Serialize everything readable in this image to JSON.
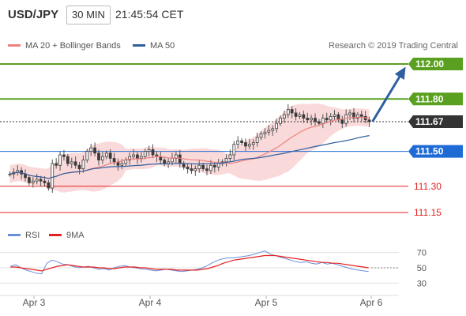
{
  "header": {
    "symbol": "USD/JPY",
    "timeframe": "30 MIN",
    "time": "21:45:54 CET"
  },
  "legend": {
    "bollinger_label": "MA 20 + Bollinger Bands",
    "ma50_label": "MA 50",
    "credit": "Research © 2019 Trading Central",
    "colors": {
      "bollinger": "#f08080",
      "ma50": "#2f5f9e"
    }
  },
  "rsi_legend": {
    "rsi_label": "RSI",
    "ma9_label": "9MA",
    "colors": {
      "rsi": "#6a8fd8",
      "ma9": "#e62020"
    }
  },
  "chart_data": [
    {
      "type": "line",
      "series": [
        {
          "name": "USD/JPY",
          "values": [
            111.37,
            111.38,
            111.39,
            111.37,
            111.35,
            111.32,
            111.33,
            111.34,
            111.33,
            111.32,
            111.29,
            111.43,
            111.42,
            111.48,
            111.47,
            111.43,
            111.44,
            111.42,
            111.4,
            111.45,
            111.5,
            111.52,
            111.49,
            111.45,
            111.47,
            111.49,
            111.46,
            111.44,
            111.42,
            111.43,
            111.45,
            111.47,
            111.48,
            111.46,
            111.47,
            111.5,
            111.51,
            111.48,
            111.47,
            111.45,
            111.43,
            111.44,
            111.46,
            111.48,
            111.43,
            111.41,
            111.4,
            111.39,
            111.4,
            111.42,
            111.4,
            111.39,
            111.42,
            111.41,
            111.43,
            111.44,
            111.46,
            111.48,
            111.54,
            111.56,
            111.55,
            111.53,
            111.54,
            111.55,
            111.58,
            111.6,
            111.61,
            111.62,
            111.63,
            111.66,
            111.69,
            111.71,
            111.74,
            111.72,
            111.7,
            111.71,
            111.69,
            111.68,
            111.69,
            111.67,
            111.66,
            111.69,
            111.68,
            111.7,
            111.71,
            111.68,
            111.66,
            111.71,
            111.72,
            111.69,
            111.71,
            111.7,
            111.68,
            111.67
          ]
        },
        {
          "name": "MA 20 + Bollinger Bands",
          "values": []
        },
        {
          "name": "MA 50",
          "values": []
        }
      ],
      "x_labels": [
        "Apr 3",
        "Apr 4",
        "Apr 5",
        "Apr 6"
      ],
      "y_levels": [
        {
          "value": "112.00",
          "style": "resistance",
          "color": "#5aa020"
        },
        {
          "value": "111.80",
          "style": "resistance",
          "color": "#5aa020"
        },
        {
          "value": "111.67",
          "style": "last",
          "color": "#333333"
        },
        {
          "value": "111.50",
          "style": "pivot",
          "color": "#1e6bd6"
        },
        {
          "value": "111.30",
          "style": "support",
          "color": "#e62020"
        },
        {
          "value": "111.15",
          "style": "support",
          "color": "#e62020"
        }
      ],
      "projection": {
        "from": 111.67,
        "to": 112.0,
        "color": "#2f5f9e"
      },
      "candle_colors": {
        "body": "#3b3b3b",
        "wick": "#555555"
      },
      "band_color": "#f7c9c9",
      "ma20_color": "#f08080",
      "ma50_color": "#2f5f9e",
      "ylim": [
        111.1,
        112.05
      ]
    },
    {
      "type": "line",
      "series": [
        {
          "name": "RSI",
          "values": [
            52,
            54,
            50,
            47,
            45,
            43,
            42,
            56,
            60,
            58,
            55,
            54,
            52,
            50,
            51,
            52,
            50,
            48,
            49,
            47,
            50,
            52,
            53,
            51,
            50,
            49,
            48,
            47,
            46,
            47,
            48,
            47,
            46,
            45,
            46,
            47,
            48,
            50,
            53,
            57,
            60,
            62,
            63,
            63,
            64,
            65,
            66,
            68,
            70,
            72,
            68,
            66,
            64,
            62,
            60,
            58,
            57,
            58,
            56,
            55,
            57,
            55,
            56,
            54,
            52,
            50,
            48,
            47,
            46,
            45
          ]
        },
        {
          "name": "9MA",
          "values": [
            51,
            51,
            50,
            49,
            48,
            47,
            46,
            48,
            50,
            52,
            53,
            54,
            53,
            52,
            51,
            51,
            51,
            50,
            50,
            49,
            49,
            50,
            51,
            51,
            51,
            50,
            50,
            49,
            48,
            48,
            48,
            48,
            47,
            47,
            47,
            47,
            47,
            48,
            49,
            51,
            53,
            56,
            58,
            60,
            61,
            62,
            63,
            64,
            65,
            66,
            66,
            66,
            65,
            64,
            63,
            62,
            61,
            60,
            59,
            58,
            57,
            57,
            56,
            56,
            55,
            54,
            53,
            52,
            51,
            50
          ]
        }
      ],
      "x_labels": [
        "Apr 3",
        "Apr 4",
        "Apr 5",
        "Apr 6"
      ],
      "y_ticks": [
        "70",
        "50",
        "30"
      ],
      "ylim": [
        20,
        80
      ],
      "dotted_level_label": "",
      "gridline_color": "#e0e0e0"
    }
  ]
}
